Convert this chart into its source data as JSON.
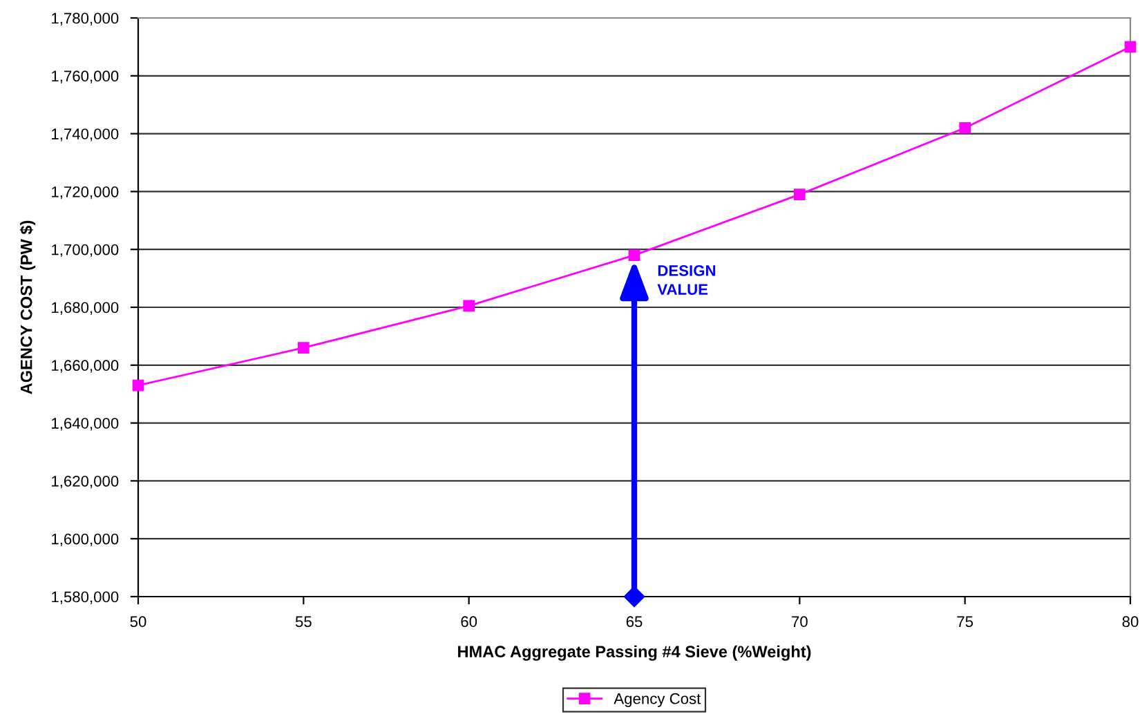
{
  "chart_data": {
    "type": "line",
    "xlabel": "HMAC Aggregate Passing #4 Sieve (%Weight)",
    "ylabel": "AGENCY COST (PW $)",
    "x": [
      50,
      55,
      60,
      65,
      70,
      75,
      80
    ],
    "series": [
      {
        "name": "Agency Cost",
        "color": "#ff00ff",
        "values": [
          1653000,
          1666000,
          1680500,
          1698000,
          1719000,
          1742000,
          1770000
        ]
      }
    ],
    "xlim": [
      50,
      80
    ],
    "xticks": [
      50,
      55,
      60,
      65,
      70,
      75,
      80
    ],
    "ylim": [
      1580000,
      1780000
    ],
    "yticks": [
      {
        "value": 1580000,
        "label": "1,580,000"
      },
      {
        "value": 1600000,
        "label": "1,600,000"
      },
      {
        "value": 1620000,
        "label": "1,620,000"
      },
      {
        "value": 1640000,
        "label": "1,640,000"
      },
      {
        "value": 1660000,
        "label": "1,660,000"
      },
      {
        "value": 1680000,
        "label": "1,680,000"
      },
      {
        "value": 1700000,
        "label": "1,700,000"
      },
      {
        "value": 1720000,
        "label": "1,720,000"
      },
      {
        "value": 1740000,
        "label": "1,740,000"
      },
      {
        "value": 1760000,
        "label": "1,760,000"
      },
      {
        "value": 1780000,
        "label": "1,780,000"
      }
    ],
    "annotations": [
      {
        "text": "DESIGN\nVALUE",
        "x": 65,
        "y": 1698000
      }
    ],
    "grid": "y",
    "legend": "bottom",
    "marker": "square",
    "line_style": "solid"
  }
}
